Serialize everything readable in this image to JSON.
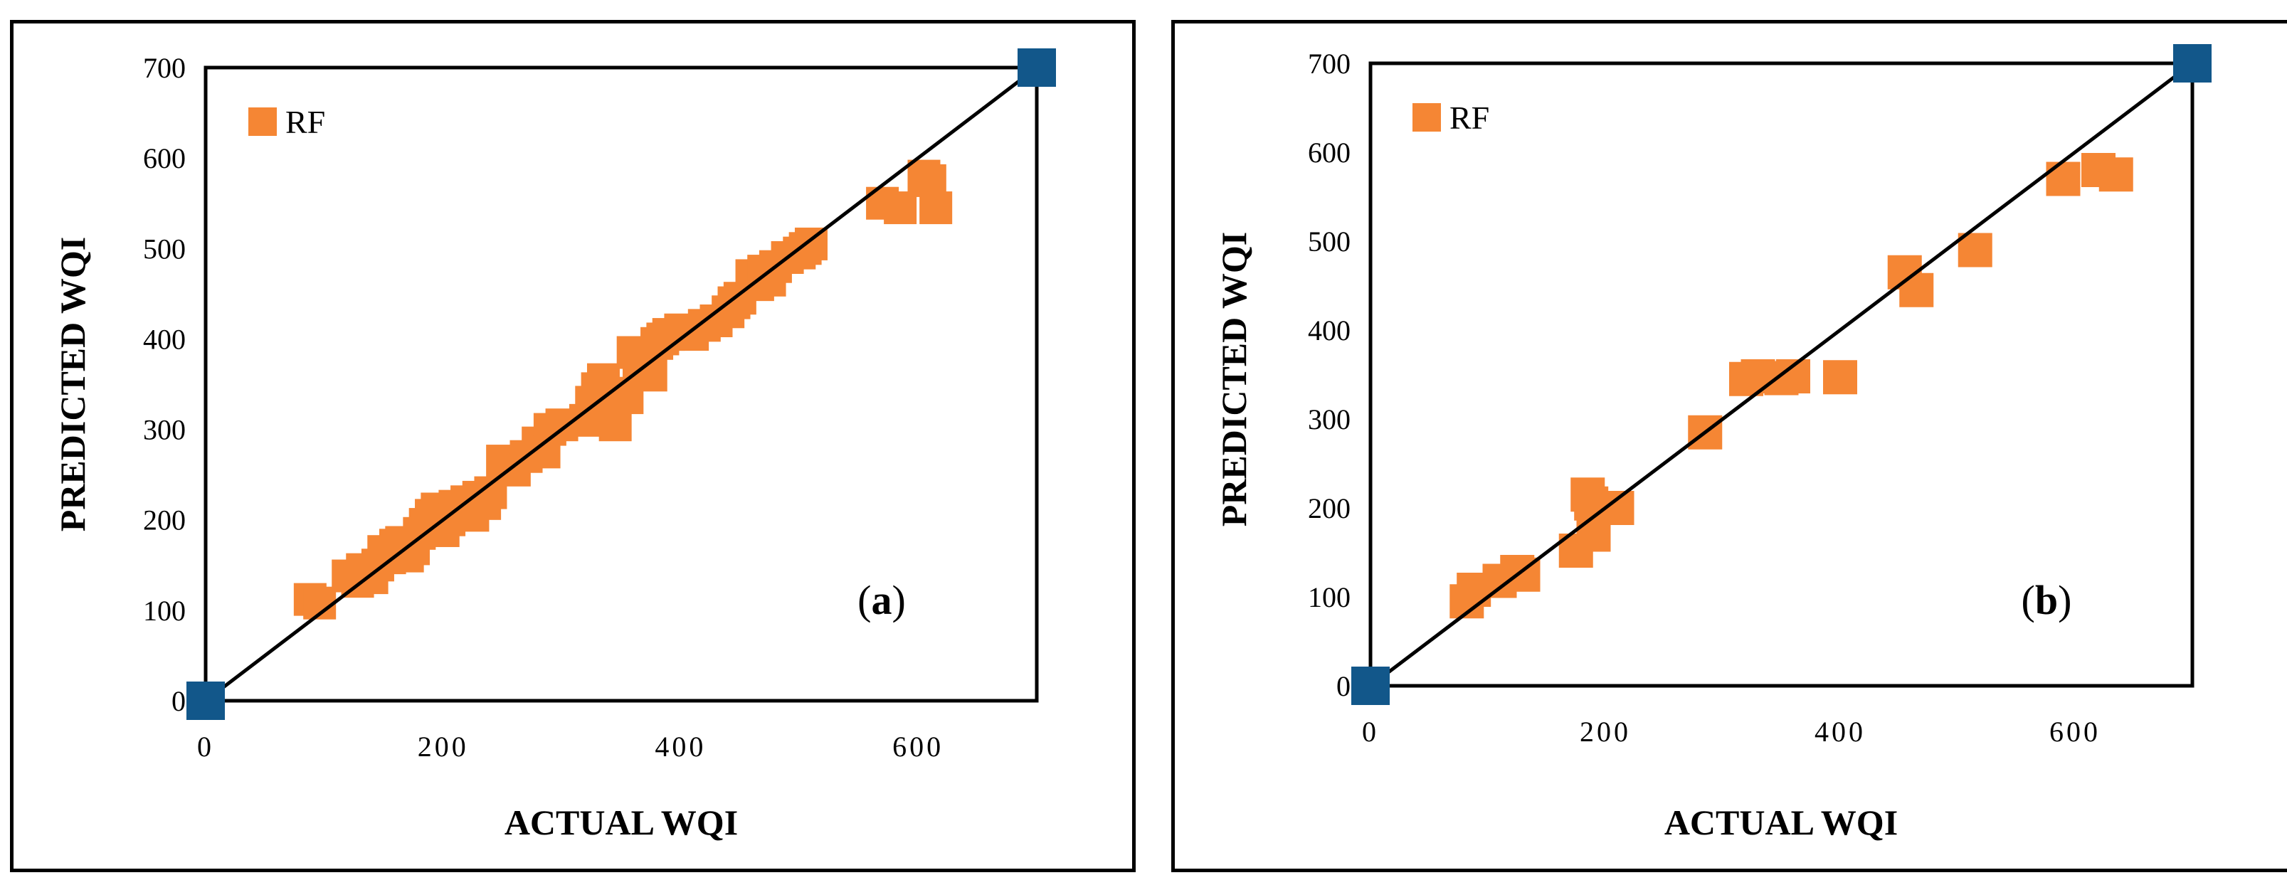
{
  "colors": {
    "prediction": "#F58634",
    "reference": "#12578A",
    "line": "#000000"
  },
  "chart_data": [
    {
      "type": "scatter",
      "panel_label": "(a)",
      "panel_letter": "a",
      "xlabel": "ACTUAL WQI",
      "ylabel": "PREDICTED WQI",
      "xlim": [
        0,
        700
      ],
      "ylim": [
        0,
        700
      ],
      "xticks": [
        0,
        200,
        400,
        600
      ],
      "yticks": [
        0,
        100,
        200,
        300,
        400,
        500,
        600,
        700
      ],
      "xtick_labels": [
        "0",
        "200",
        "400",
        "600"
      ],
      "ytick_labels": [
        "0",
        "100",
        "200",
        "300",
        "400",
        "500",
        "600",
        "700"
      ],
      "legend": "RF",
      "identity_line": [
        [
          0,
          0
        ],
        [
          700,
          700
        ]
      ],
      "reference_points": [
        [
          0,
          0
        ],
        [
          700,
          700
        ]
      ],
      "series": [
        {
          "name": "RF",
          "points": [
            [
              88,
              112
            ],
            [
              96,
              108
            ],
            [
              120,
              138
            ],
            [
              128,
              132
            ],
            [
              132,
              145
            ],
            [
              140,
              136
            ],
            [
              145,
              150
            ],
            [
              150,
              165
            ],
            [
              155,
              158
            ],
            [
              160,
              172
            ],
            [
              165,
              175
            ],
            [
              170,
              160
            ],
            [
              175,
              168
            ],
            [
              180,
              185
            ],
            [
              185,
              195
            ],
            [
              190,
              205
            ],
            [
              195,
              212
            ],
            [
              200,
              188
            ],
            [
              205,
              200
            ],
            [
              210,
              215
            ],
            [
              215,
              210
            ],
            [
              220,
              220
            ],
            [
              225,
              205
            ],
            [
              230,
              225
            ],
            [
              235,
              218
            ],
            [
              240,
              230
            ],
            [
              250,
              265
            ],
            [
              260,
              255
            ],
            [
              270,
              270
            ],
            [
              280,
              285
            ],
            [
              285,
              275
            ],
            [
              290,
              300
            ],
            [
              300,
              305
            ],
            [
              320,
              310
            ],
            [
              325,
              330
            ],
            [
              330,
              345
            ],
            [
              335,
              355
            ],
            [
              340,
              320
            ],
            [
              345,
              305
            ],
            [
              350,
              340
            ],
            [
              355,
              335
            ],
            [
              360,
              385
            ],
            [
              365,
              375
            ],
            [
              370,
              365
            ],
            [
              375,
              360
            ],
            [
              380,
              395
            ],
            [
              385,
              400
            ],
            [
              390,
              405
            ],
            [
              400,
              410
            ],
            [
              410,
              405
            ],
            [
              420,
              415
            ],
            [
              430,
              420
            ],
            [
              440,
              430
            ],
            [
              445,
              440
            ],
            [
              450,
              445
            ],
            [
              460,
              470
            ],
            [
              465,
              460
            ],
            [
              470,
              475
            ],
            [
              475,
              465
            ],
            [
              480,
              480
            ],
            [
              490,
              490
            ],
            [
              500,
              495
            ],
            [
              505,
              500
            ],
            [
              510,
              505
            ],
            [
              570,
              550
            ],
            [
              585,
              545
            ],
            [
              605,
              580
            ],
            [
              610,
              575
            ],
            [
              615,
              545
            ]
          ]
        }
      ]
    },
    {
      "type": "scatter",
      "panel_label": "(b)",
      "panel_letter": "b",
      "xlabel": "ACTUAL WQI",
      "ylabel": "PREDICTED WQI",
      "xlim": [
        0,
        700
      ],
      "ylim": [
        0,
        700
      ],
      "xticks": [
        0,
        200,
        400,
        600
      ],
      "yticks": [
        0,
        100,
        200,
        300,
        400,
        500,
        600,
        700
      ],
      "xtick_labels": [
        "0",
        "200",
        "400",
        "600"
      ],
      "ytick_labels": [
        "0",
        "100",
        "200",
        "300",
        "400",
        "500",
        "600",
        "700"
      ],
      "legend": "RF",
      "identity_line": [
        [
          0,
          0
        ],
        [
          700,
          700
        ]
      ],
      "reference_points": [
        [
          0,
          0
        ],
        [
          700,
          700
        ]
      ],
      "series": [
        {
          "name": "RF",
          "points": [
            [
              82,
              95
            ],
            [
              88,
              108
            ],
            [
              110,
              118
            ],
            [
              125,
              128
            ],
            [
              130,
              125
            ],
            [
              175,
              152
            ],
            [
              185,
              215
            ],
            [
              188,
              205
            ],
            [
              190,
              170
            ],
            [
              210,
              200
            ],
            [
              285,
              285
            ],
            [
              320,
              345
            ],
            [
              330,
              348
            ],
            [
              350,
              346
            ],
            [
              360,
              348
            ],
            [
              400,
              347
            ],
            [
              455,
              465
            ],
            [
              465,
              445
            ],
            [
              515,
              490
            ],
            [
              590,
              570
            ],
            [
              620,
              580
            ],
            [
              635,
              575
            ]
          ]
        }
      ]
    }
  ]
}
